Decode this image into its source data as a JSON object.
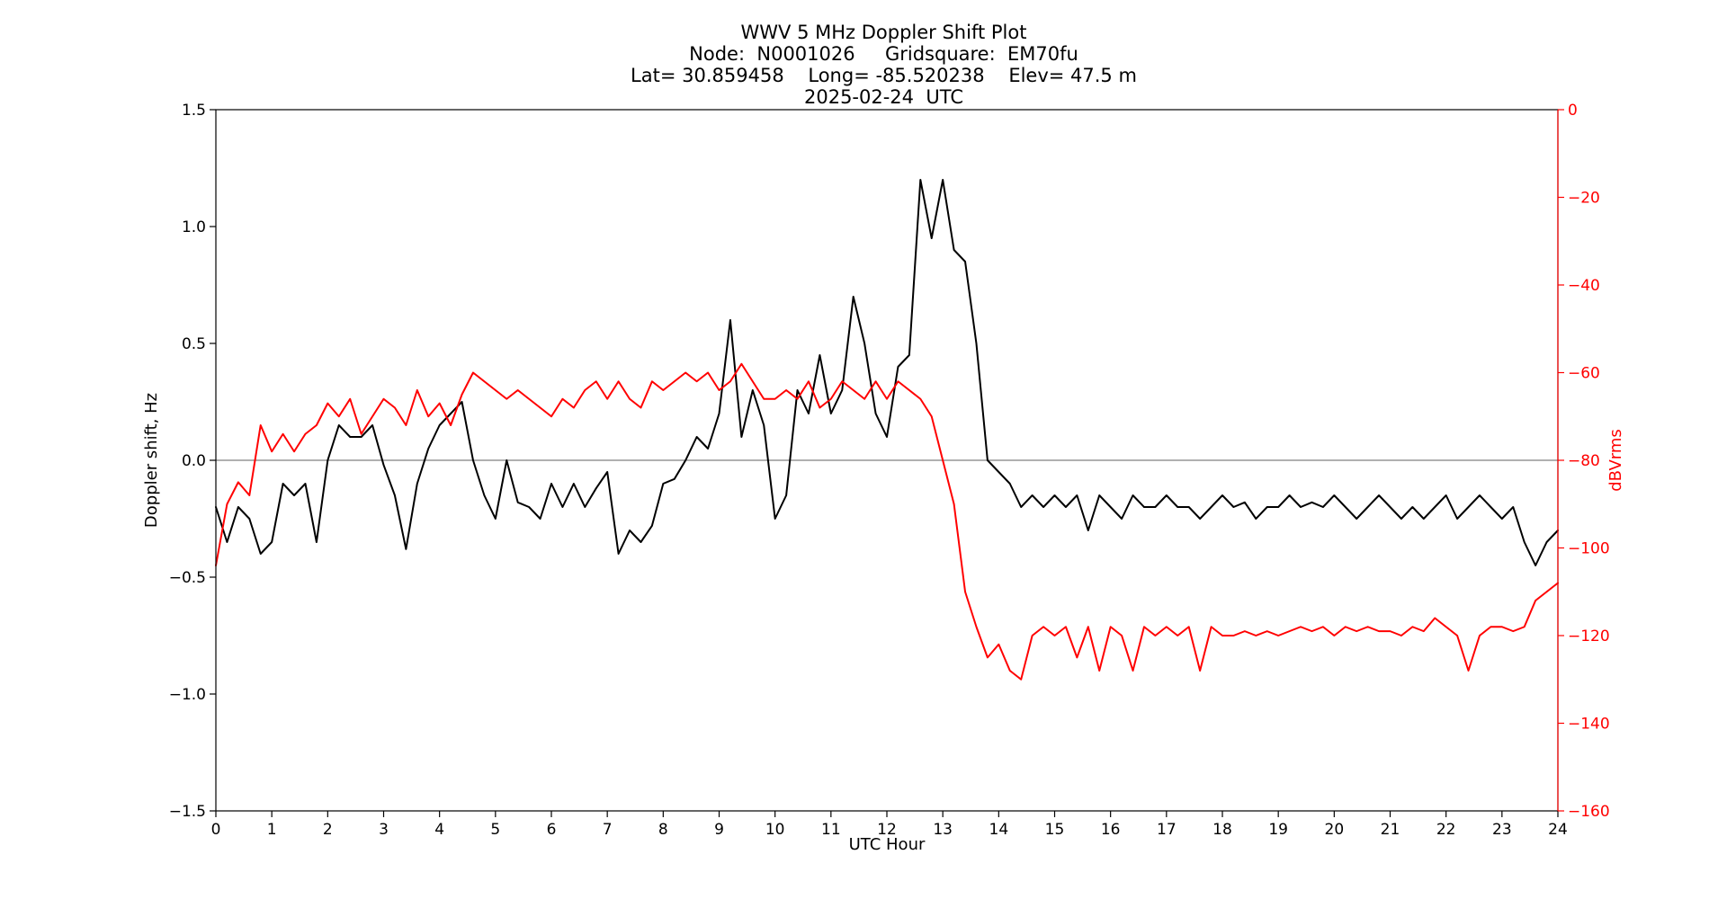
{
  "chart_data": {
    "type": "line",
    "title_lines": [
      "WWV 5 MHz Doppler Shift Plot",
      "Node:  N0001026     Gridsquare:  EM70fu",
      "Lat= 30.859458    Long= -85.520238    Elev= 47.5 m",
      "2025-02-24  UTC"
    ],
    "xlabel": "UTC Hour",
    "ylabel_left": "Doppler shift, Hz",
    "ylabel_right": "dBVrms",
    "xlim": [
      0,
      24
    ],
    "ylim_left": [
      -1.5,
      1.5
    ],
    "ylim_right": [
      -160,
      0
    ],
    "x_ticks": [
      0,
      1,
      2,
      3,
      4,
      5,
      6,
      7,
      8,
      9,
      10,
      11,
      12,
      13,
      14,
      15,
      16,
      17,
      18,
      19,
      20,
      21,
      22,
      23,
      24
    ],
    "y_ticks_left": [
      "−1.5",
      "−1.0",
      "−0.5",
      "0.0",
      "0.5",
      "1.0",
      "1.5"
    ],
    "y_ticks_right": [
      "−160",
      "−140",
      "−120",
      "−100",
      "−80",
      "−60",
      "−40",
      "−20",
      "0"
    ],
    "zero_line": true,
    "colors": {
      "doppler": "#000000",
      "power": "#ff0000",
      "zero_line": "#808080",
      "axis": "#000000"
    },
    "series": [
      {
        "axis": "left",
        "color": "#000000",
        "x": [
          0,
          0.2,
          0.4,
          0.6,
          0.8,
          1.0,
          1.2,
          1.4,
          1.6,
          1.8,
          2.0,
          2.2,
          2.4,
          2.6,
          2.8,
          3.0,
          3.2,
          3.4,
          3.6,
          3.8,
          4.0,
          4.2,
          4.4,
          4.6,
          4.8,
          5.0,
          5.2,
          5.4,
          5.6,
          5.8,
          6.0,
          6.2,
          6.4,
          6.6,
          6.8,
          7.0,
          7.2,
          7.4,
          7.6,
          7.8,
          8.0,
          8.2,
          8.4,
          8.6,
          8.8,
          9.0,
          9.2,
          9.4,
          9.6,
          9.8,
          10.0,
          10.2,
          10.4,
          10.6,
          10.8,
          11.0,
          11.2,
          11.4,
          11.6,
          11.8,
          12.0,
          12.2,
          12.4,
          12.6,
          12.8,
          13.0,
          13.2,
          13.4,
          13.6,
          13.8,
          14.0,
          14.2,
          14.4,
          14.6,
          14.8,
          15.0,
          15.2,
          15.4,
          15.6,
          15.8,
          16.0,
          16.2,
          16.4,
          16.6,
          16.8,
          17.0,
          17.2,
          17.4,
          17.6,
          17.8,
          18.0,
          18.2,
          18.4,
          18.6,
          18.8,
          19.0,
          19.2,
          19.4,
          19.6,
          19.8,
          20.0,
          20.2,
          20.4,
          20.6,
          20.8,
          21.0,
          21.2,
          21.4,
          21.6,
          21.8,
          22.0,
          22.2,
          22.4,
          22.6,
          22.8,
          23.0,
          23.2,
          23.4,
          23.6,
          23.8,
          24.0
        ],
        "y": [
          -0.2,
          -0.35,
          -0.2,
          -0.25,
          -0.4,
          -0.35,
          -0.1,
          -0.15,
          -0.1,
          -0.35,
          0.0,
          0.15,
          0.1,
          0.1,
          0.15,
          -0.02,
          -0.15,
          -0.38,
          -0.1,
          0.05,
          0.15,
          0.2,
          0.25,
          0.0,
          -0.15,
          -0.25,
          0.0,
          -0.18,
          -0.2,
          -0.25,
          -0.1,
          -0.2,
          -0.1,
          -0.2,
          -0.12,
          -0.05,
          -0.4,
          -0.3,
          -0.35,
          -0.28,
          -0.1,
          -0.08,
          0.0,
          0.1,
          0.05,
          0.2,
          0.6,
          0.1,
          0.3,
          0.15,
          -0.25,
          -0.15,
          0.3,
          0.2,
          0.45,
          0.2,
          0.3,
          0.7,
          0.5,
          0.2,
          0.1,
          0.4,
          0.45,
          1.2,
          0.95,
          1.2,
          0.9,
          0.85,
          0.5,
          0.0,
          -0.05,
          -0.1,
          -0.2,
          -0.15,
          -0.2,
          -0.15,
          -0.2,
          -0.15,
          -0.3,
          -0.15,
          -0.2,
          -0.25,
          -0.15,
          -0.2,
          -0.2,
          -0.15,
          -0.2,
          -0.2,
          -0.25,
          -0.2,
          -0.15,
          -0.2,
          -0.18,
          -0.25,
          -0.2,
          -0.2,
          -0.15,
          -0.2,
          -0.18,
          -0.2,
          -0.15,
          -0.2,
          -0.25,
          -0.2,
          -0.15,
          -0.2,
          -0.25,
          -0.2,
          -0.25,
          -0.2,
          -0.15,
          -0.25,
          -0.2,
          -0.15,
          -0.2,
          -0.25,
          -0.2,
          -0.35,
          -0.45,
          -0.35,
          -0.3
        ]
      },
      {
        "axis": "right",
        "color": "#ff0000",
        "x": [
          0,
          0.2,
          0.4,
          0.6,
          0.8,
          1.0,
          1.2,
          1.4,
          1.6,
          1.8,
          2.0,
          2.2,
          2.4,
          2.6,
          2.8,
          3.0,
          3.2,
          3.4,
          3.6,
          3.8,
          4.0,
          4.2,
          4.4,
          4.6,
          4.8,
          5.0,
          5.2,
          5.4,
          5.6,
          5.8,
          6.0,
          6.2,
          6.4,
          6.6,
          6.8,
          7.0,
          7.2,
          7.4,
          7.6,
          7.8,
          8.0,
          8.2,
          8.4,
          8.6,
          8.8,
          9.0,
          9.2,
          9.4,
          9.6,
          9.8,
          10.0,
          10.2,
          10.4,
          10.6,
          10.8,
          11.0,
          11.2,
          11.4,
          11.6,
          11.8,
          12.0,
          12.2,
          12.4,
          12.6,
          12.8,
          13.0,
          13.2,
          13.4,
          13.6,
          13.8,
          14.0,
          14.2,
          14.4,
          14.6,
          14.8,
          15.0,
          15.2,
          15.4,
          15.6,
          15.8,
          16.0,
          16.2,
          16.4,
          16.6,
          16.8,
          17.0,
          17.2,
          17.4,
          17.6,
          17.8,
          18.0,
          18.2,
          18.4,
          18.6,
          18.8,
          19.0,
          19.2,
          19.4,
          19.6,
          19.8,
          20.0,
          20.2,
          20.4,
          20.6,
          20.8,
          21.0,
          21.2,
          21.4,
          21.6,
          21.8,
          22.0,
          22.2,
          22.4,
          22.6,
          22.8,
          23.0,
          23.2,
          23.4,
          23.6,
          23.8,
          24.0
        ],
        "y": [
          -104,
          -90,
          -85,
          -88,
          -72,
          -78,
          -74,
          -78,
          -74,
          -72,
          -67,
          -70,
          -66,
          -74,
          -70,
          -66,
          -68,
          -72,
          -64,
          -70,
          -67,
          -72,
          -65,
          -60,
          -62,
          -64,
          -66,
          -64,
          -66,
          -68,
          -70,
          -66,
          -68,
          -64,
          -62,
          -66,
          -62,
          -66,
          -68,
          -62,
          -64,
          -62,
          -60,
          -62,
          -60,
          -64,
          -62,
          -58,
          -62,
          -66,
          -66,
          -64,
          -66,
          -62,
          -68,
          -66,
          -62,
          -64,
          -66,
          -62,
          -66,
          -62,
          -64,
          -66,
          -70,
          -80,
          -90,
          -110,
          -118,
          -125,
          -122,
          -128,
          -130,
          -120,
          -118,
          -120,
          -118,
          -125,
          -118,
          -128,
          -118,
          -120,
          -128,
          -118,
          -120,
          -118,
          -120,
          -118,
          -128,
          -118,
          -120,
          -120,
          -119,
          -120,
          -119,
          -120,
          -119,
          -118,
          -119,
          -118,
          -120,
          -118,
          -119,
          -118,
          -119,
          -119,
          -120,
          -118,
          -119,
          -116,
          -118,
          -120,
          -128,
          -120,
          -118,
          -118,
          -119,
          -118,
          -112,
          -110,
          -108
        ]
      }
    ]
  }
}
